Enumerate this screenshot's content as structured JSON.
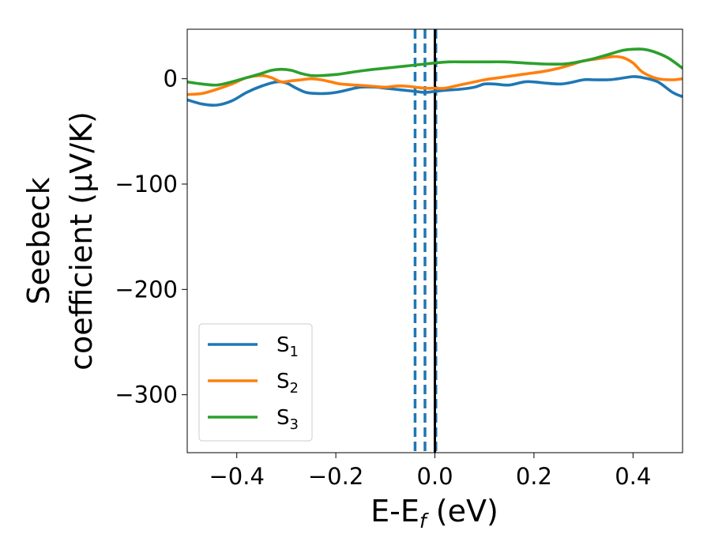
{
  "chart_data": {
    "type": "line",
    "xlabel": {
      "main": "E-E",
      "sub": "f",
      "rest": " (eV)"
    },
    "ylabel": {
      "line1": "Seebeck",
      "line2": "coefficient  (μV/K)"
    },
    "xlim": [
      -0.5,
      0.5
    ],
    "ylim": [
      -355,
      47
    ],
    "xticks": [
      -0.4,
      -0.2,
      0.0,
      0.2,
      0.4
    ],
    "xtick_labels": [
      "−0.4",
      "−0.2",
      "0.0",
      "0.2",
      "0.4"
    ],
    "yticks": [
      0,
      -100,
      -200,
      -300
    ],
    "ytick_labels": [
      "0",
      "−100",
      "−200",
      "−300"
    ],
    "grid": false,
    "legend_position": "lower-left",
    "vertical_lines": [
      {
        "x": -0.04,
        "style": "dashed",
        "color": "#1f77b4"
      },
      {
        "x": -0.02,
        "style": "dashed",
        "color": "#1f77b4"
      },
      {
        "x": 0.002,
        "style": "dashed",
        "color": "#1f77b4"
      },
      {
        "x": 0.0,
        "style": "solid",
        "color": "#000000"
      }
    ],
    "series": [
      {
        "name": "S",
        "sub": "1",
        "color": "#1f77b4",
        "x": [
          -0.5,
          -0.47,
          -0.44,
          -0.41,
          -0.38,
          -0.35,
          -0.32,
          -0.3,
          -0.28,
          -0.26,
          -0.24,
          -0.22,
          -0.2,
          -0.18,
          -0.15,
          -0.12,
          -0.1,
          -0.08,
          -0.06,
          -0.04,
          -0.02,
          0.0,
          0.02,
          0.05,
          0.08,
          0.1,
          0.12,
          0.15,
          0.18,
          0.2,
          0.22,
          0.25,
          0.27,
          0.3,
          0.32,
          0.35,
          0.37,
          0.4,
          0.42,
          0.45,
          0.48,
          0.5
        ],
        "y": [
          -20,
          -24,
          -25,
          -21,
          -13,
          -7,
          -3,
          -4,
          -9,
          -13,
          -14,
          -14,
          -13,
          -11,
          -8,
          -8,
          -9,
          -10,
          -11,
          -12,
          -13,
          -12,
          -11,
          -10,
          -8,
          -5,
          -5,
          -6,
          -3,
          -3,
          -4,
          -5,
          -4,
          -1,
          -1,
          -1,
          0,
          2,
          1,
          -3,
          -13,
          -17
        ]
      },
      {
        "name": "S",
        "sub": "2",
        "color": "#ff7f0e",
        "x": [
          -0.5,
          -0.47,
          -0.44,
          -0.41,
          -0.38,
          -0.35,
          -0.33,
          -0.31,
          -0.29,
          -0.27,
          -0.25,
          -0.23,
          -0.21,
          -0.19,
          -0.16,
          -0.13,
          -0.1,
          -0.08,
          -0.06,
          -0.04,
          -0.02,
          0.0,
          0.02,
          0.05,
          0.08,
          0.1,
          0.13,
          0.16,
          0.19,
          0.22,
          0.25,
          0.28,
          0.3,
          0.33,
          0.36,
          0.38,
          0.4,
          0.42,
          0.45,
          0.48,
          0.5
        ],
        "y": [
          -15,
          -14,
          -10,
          -5,
          1,
          3,
          1,
          -3,
          -2,
          -1,
          0,
          -1,
          -3,
          -5,
          -6,
          -7,
          -8,
          -7,
          -7,
          -8,
          -9,
          -9,
          -9,
          -6,
          -3,
          -1,
          1,
          3,
          5,
          7,
          10,
          14,
          17,
          19,
          21,
          20,
          15,
          6,
          0,
          -1,
          0
        ]
      },
      {
        "name": "S",
        "sub": "3",
        "color": "#2ca02c",
        "x": [
          -0.5,
          -0.47,
          -0.44,
          -0.41,
          -0.38,
          -0.35,
          -0.33,
          -0.31,
          -0.29,
          -0.27,
          -0.25,
          -0.23,
          -0.2,
          -0.17,
          -0.14,
          -0.1,
          -0.06,
          -0.02,
          0.0,
          0.03,
          0.06,
          0.1,
          0.14,
          0.18,
          0.22,
          0.26,
          0.29,
          0.32,
          0.35,
          0.38,
          0.4,
          0.42,
          0.44,
          0.47,
          0.5
        ],
        "y": [
          -3,
          -5,
          -6,
          -3,
          1,
          5,
          8,
          9,
          8,
          5,
          3,
          3,
          4,
          6,
          8,
          10,
          12,
          14,
          15,
          16,
          16,
          16,
          16,
          15,
          14,
          14,
          16,
          19,
          23,
          27,
          28,
          28,
          26,
          20,
          10
        ]
      }
    ]
  }
}
